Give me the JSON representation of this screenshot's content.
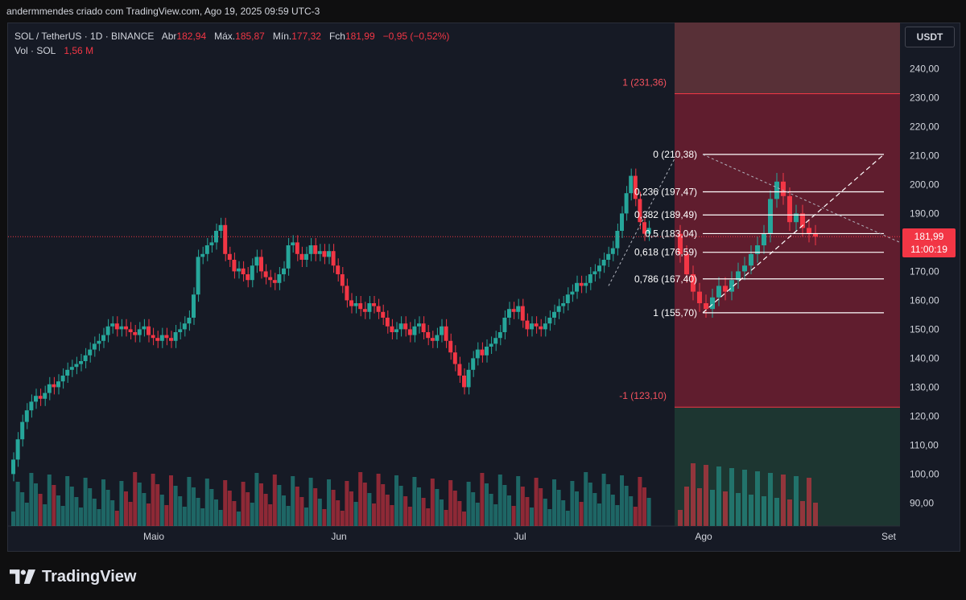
{
  "header": {
    "attribution": "andermmendes criado com TradingView.com, Ago 19, 2025 09:59 UTC-3"
  },
  "legend": {
    "symbol": "SOL / TetherUS · 1D · BINANCE",
    "open_label": "Abr",
    "open": "182,94",
    "high_label": "Máx.",
    "high": "185,87",
    "low_label": "Mín.",
    "low": "177,32",
    "close_label": "Fch",
    "close": "181,99",
    "change": "−0,95 (−0,52%)",
    "volume_label": "Vol · SOL",
    "volume": "1,56 M"
  },
  "toolbar": {
    "currency_button": "USDT"
  },
  "price_tag": {
    "price": "181,99",
    "countdown": "11:00:19"
  },
  "price_axis_labels": [
    "240,00",
    "230,00",
    "220,00",
    "210,00",
    "200,00",
    "190,00",
    "180,00",
    "170,00",
    "160,00",
    "150,00",
    "140,00",
    "130,00",
    "120,00",
    "110,00",
    "100,00",
    "90,00"
  ],
  "time_axis_labels": [
    "Maio",
    "Jun",
    "Jul",
    "Ago",
    "Set"
  ],
  "fib_levels": [
    {
      "label": "0 (210,38)",
      "price": 210.38
    },
    {
      "label": "0,236 (197,47)",
      "price": 197.47
    },
    {
      "label": "0,382 (189,49)",
      "price": 189.49
    },
    {
      "label": "0,5 (183,04)",
      "price": 183.04
    },
    {
      "label": "0,618 (176,59)",
      "price": 176.59
    },
    {
      "label": "0,786 (167,40)",
      "price": 167.4
    },
    {
      "label": "1 (155,70)",
      "price": 155.7
    }
  ],
  "position_tool": {
    "target_label": "1 (231,36)",
    "target": 231.36,
    "stop_label": "-1 (123,10)",
    "stop": 123.1
  },
  "footer": {
    "brand": "TradingView"
  },
  "colors": {
    "up": "#26a69a",
    "down": "#f23645",
    "background": "#161a25"
  }
}
